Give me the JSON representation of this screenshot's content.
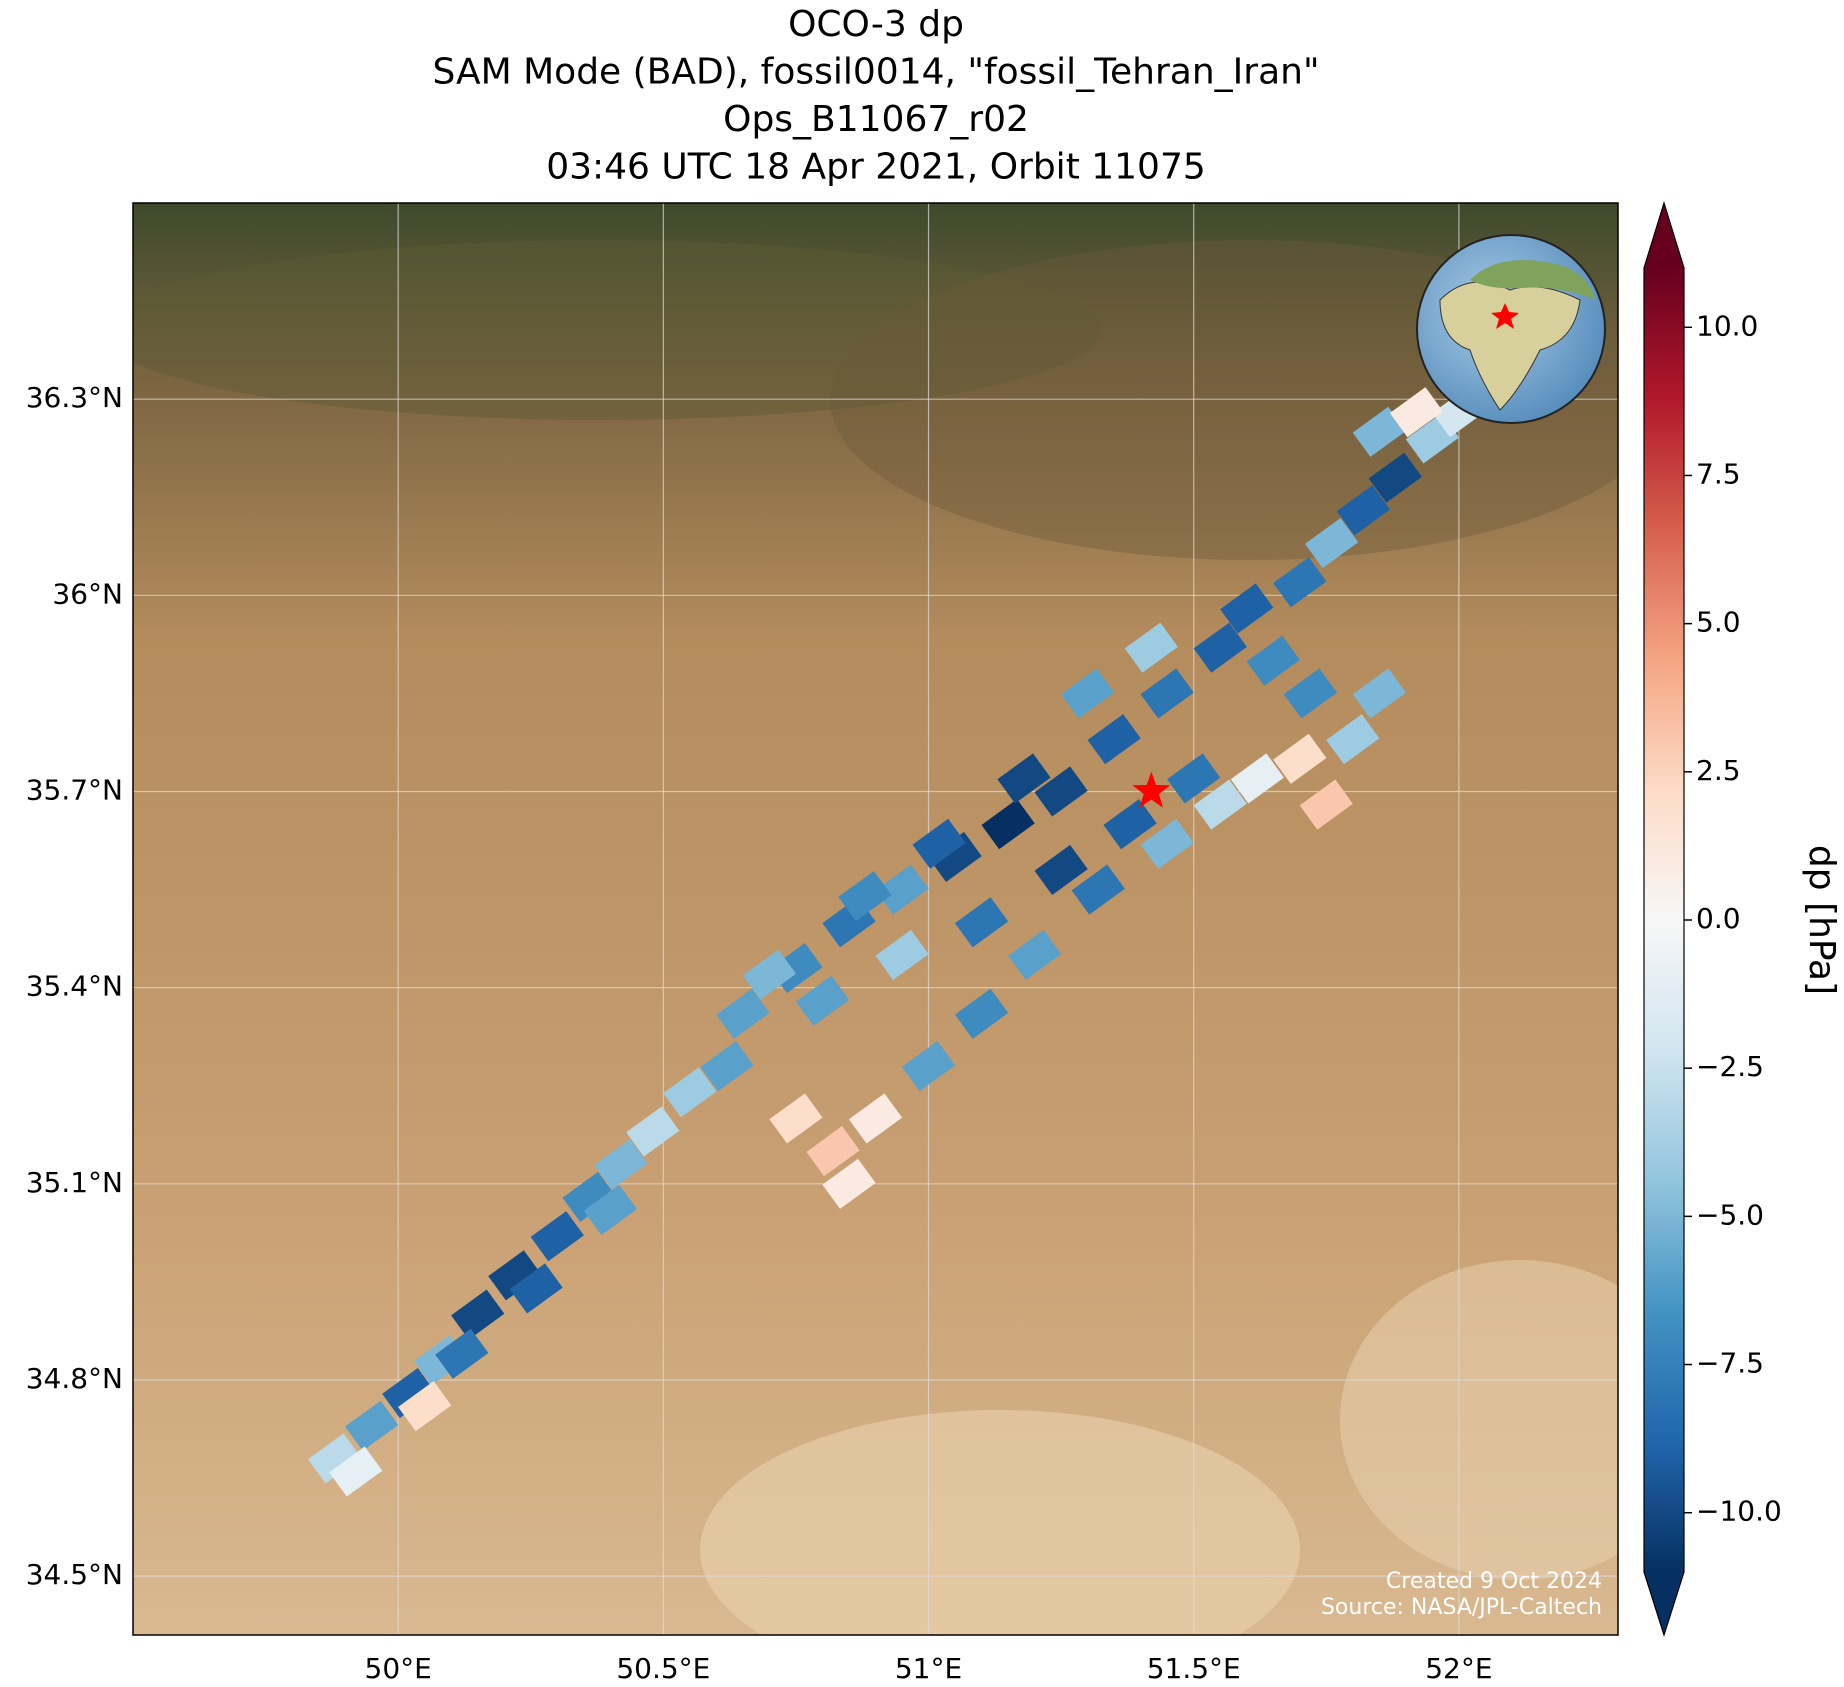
{
  "chart_data": {
    "type": "map",
    "title": [
      "OCO-3 dp",
      "SAM Mode (BAD), fossil0014, \"fossil_Tehran_Iran\"",
      "Ops_B11067_r02",
      "03:46 UTC 18 Apr 2021, Orbit 11075"
    ],
    "xlim": [
      49.5,
      52.3
    ],
    "ylim": [
      34.41,
      36.6
    ],
    "xticks": [
      {
        "value": 50,
        "label": "50°E"
      },
      {
        "value": 50.5,
        "label": "50.5°E"
      },
      {
        "value": 51,
        "label": "51°E"
      },
      {
        "value": 51.5,
        "label": "51.5°E"
      },
      {
        "value": 52,
        "label": "52°E"
      }
    ],
    "yticks": [
      {
        "value": 34.5,
        "label": "34.5°N"
      },
      {
        "value": 34.8,
        "label": "34.8°N"
      },
      {
        "value": 35.1,
        "label": "35.1°N"
      },
      {
        "value": 35.4,
        "label": "35.4°N"
      },
      {
        "value": 35.7,
        "label": "35.7°N"
      },
      {
        "value": 36,
        "label": "36°N"
      },
      {
        "value": 36.3,
        "label": "36.3°N"
      }
    ],
    "grid": true,
    "colorbar_label": "dp [hPa]",
    "clim": [
      -11,
      11
    ],
    "colormap": [
      "#053061",
      "#2166ac",
      "#4393c3",
      "#92c5de",
      "#d1e5f0",
      "#f7f7f7",
      "#fddbc7",
      "#f4a582",
      "#d6604d",
      "#b2182b",
      "#67001f"
    ],
    "cticks": [
      {
        "value": 10,
        "label": "10.0"
      },
      7.5,
      {
        "value": 5,
        "label": "5.0"
      },
      2.5,
      {
        "value": 0,
        "label": "0.0"
      },
      {
        "value": -2.5,
        "label": "−2.5"
      },
      {
        "value": -5,
        "label": "−5.0"
      },
      {
        "value": -7.5,
        "label": "−7.5"
      },
      {
        "value": -10,
        "label": "−10.0"
      }
    ],
    "target": {
      "lon": 51.42,
      "lat": 35.7,
      "color": "#ff0000"
    },
    "soundings": {
      "lon": [
        49.88,
        49.95,
        50.02,
        50.08,
        50.15,
        50.22,
        50.3,
        50.36,
        50.42,
        50.48,
        50.55,
        50.62,
        49.92,
        50.05,
        50.12,
        50.26,
        50.4,
        50.65,
        50.75,
        50.85,
        50.95,
        51.05,
        51.15,
        51.25,
        51.35,
        51.45,
        51.55,
        50.8,
        50.95,
        51.1,
        51.25,
        51.38,
        51.5,
        51.3,
        51.42,
        51.6,
        51.65,
        50.7,
        50.88,
        51.02,
        51.18,
        51.7,
        51.76,
        51.82,
        51.88,
        51.95,
        52.0,
        51.85,
        51.92,
        50.82,
        50.9,
        51.0,
        51.1,
        51.2,
        51.32,
        51.45,
        51.55,
        51.62,
        51.7,
        51.75,
        51.8,
        51.85,
        51.72,
        50.75,
        50.85
      ],
      "lat": [
        34.68,
        34.73,
        34.78,
        34.83,
        34.9,
        34.96,
        35.02,
        35.08,
        35.13,
        35.18,
        35.24,
        35.28,
        34.66,
        34.76,
        34.84,
        34.94,
        35.06,
        35.36,
        35.43,
        35.5,
        35.55,
        35.6,
        35.65,
        35.7,
        35.78,
        35.85,
        35.92,
        35.38,
        35.45,
        35.5,
        35.58,
        35.65,
        35.72,
        35.85,
        35.92,
        35.98,
        35.9,
        35.42,
        35.54,
        35.62,
        35.72,
        36.02,
        36.08,
        36.13,
        36.18,
        36.24,
        36.28,
        36.25,
        36.28,
        35.15,
        35.2,
        35.28,
        35.36,
        35.45,
        35.55,
        35.62,
        35.68,
        35.72,
        35.75,
        35.68,
        35.78,
        35.85,
        35.85,
        35.2,
        35.1
      ],
      "dp": [
        -3,
        -6,
        -9,
        -5,
        -10,
        -10,
        -9,
        -7,
        -5,
        -3,
        -4,
        -6,
        -1,
        2,
        -8,
        -9,
        -6,
        -6,
        -7,
        -8,
        -6,
        -10,
        -11,
        -10,
        -9,
        -8,
        -9,
        -6,
        -4,
        -8,
        -10,
        -9,
        -8,
        -6,
        -4,
        -9,
        -7,
        -5,
        -7,
        -9,
        -10,
        -8,
        -5,
        -9,
        -10,
        -4,
        -2,
        -5,
        1,
        3,
        1,
        -6,
        -7,
        -6,
        -8,
        -5,
        -3,
        -1,
        2,
        3,
        -4,
        -5,
        -7,
        2,
        1
      ]
    },
    "credits": [
      "Created 9 Oct 2024",
      "Source: NASA/JPL-Caltech"
    ]
  }
}
